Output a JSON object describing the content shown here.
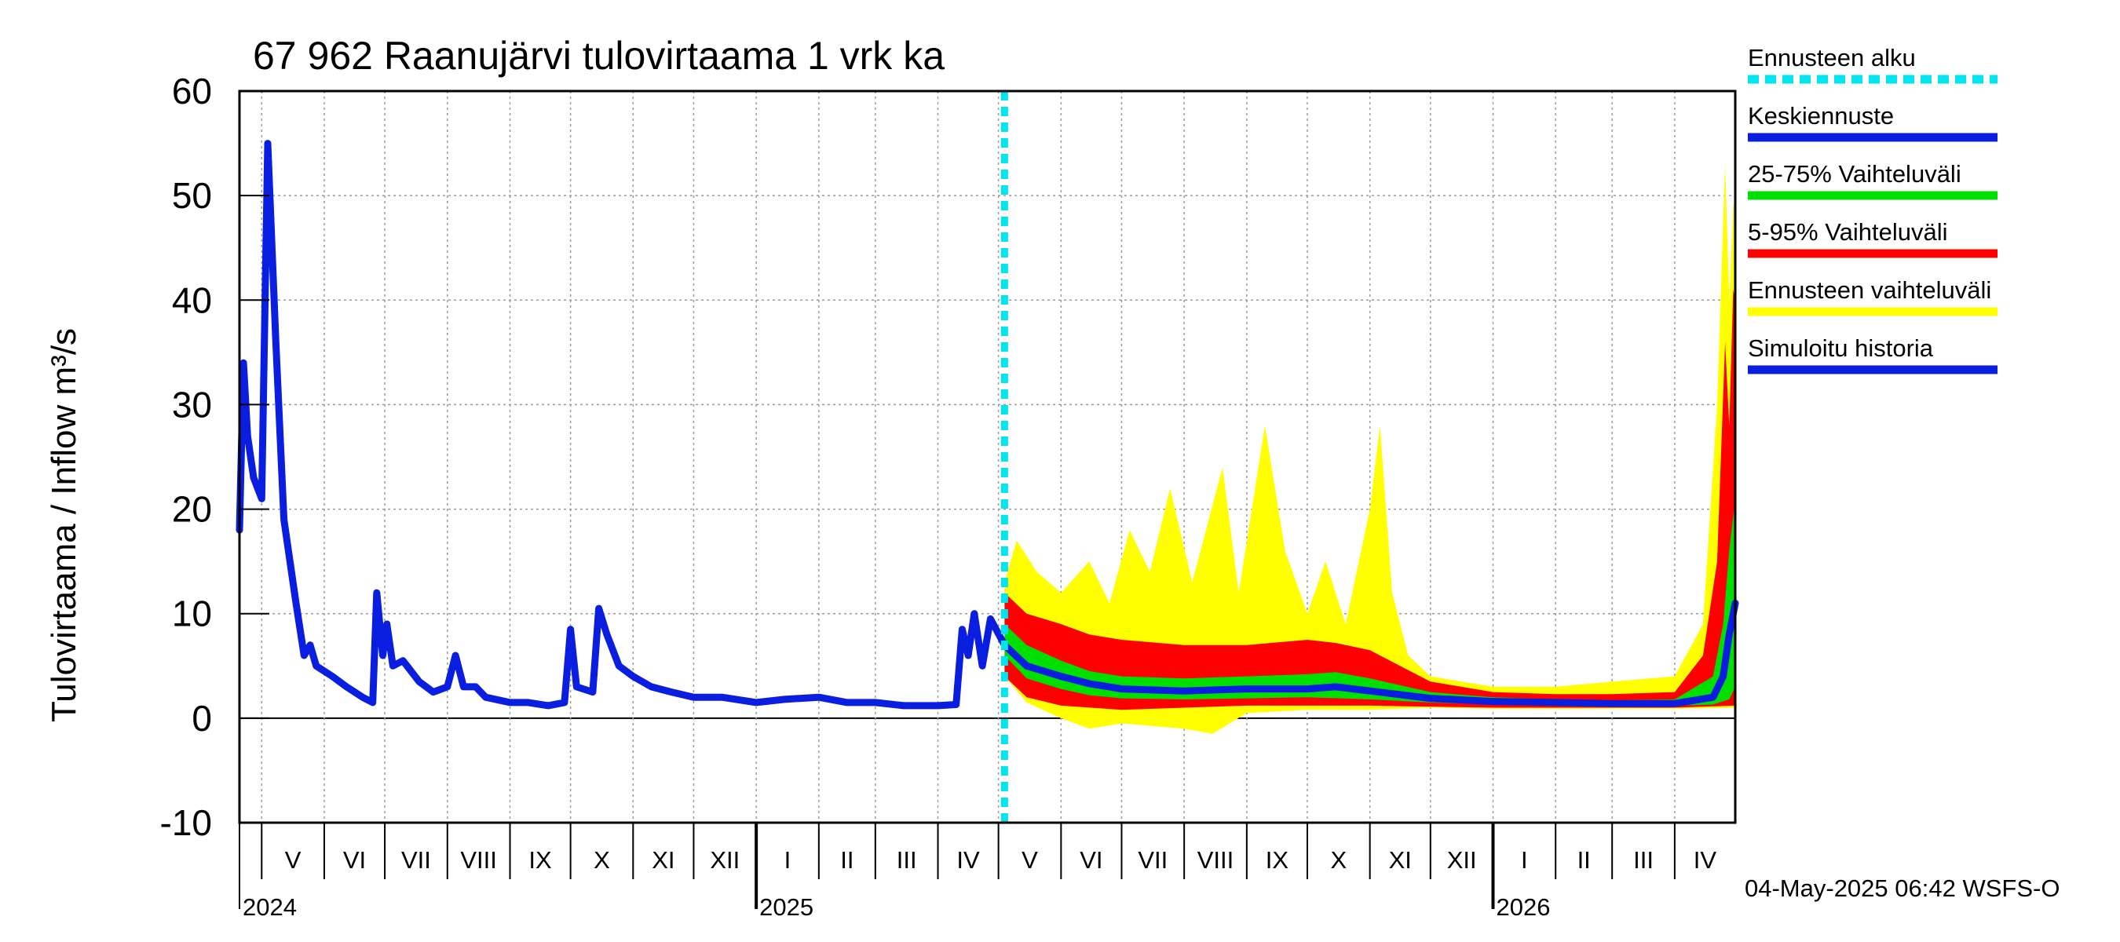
{
  "chart_data": {
    "type": "area",
    "title": "67 962 Raanujärvi tulovirtaama 1 vrk ka",
    "ylabel": "Tulovirtaama / Inflow    m³/s",
    "ylim": [
      -10,
      60
    ],
    "yticks": [
      -10,
      0,
      10,
      20,
      30,
      40,
      50,
      60
    ],
    "x_start": "2024-04-20",
    "x_end": "2026-05-01",
    "forecast_start": "2025-05-04",
    "grid": true,
    "months": [
      {
        "label": "V",
        "start": "2024-05-01",
        "end": "2024-06-01"
      },
      {
        "label": "VI",
        "start": "2024-06-01",
        "end": "2024-07-01"
      },
      {
        "label": "VII",
        "start": "2024-07-01",
        "end": "2024-08-01"
      },
      {
        "label": "VIII",
        "start": "2024-08-01",
        "end": "2024-09-01"
      },
      {
        "label": "IX",
        "start": "2024-09-01",
        "end": "2024-10-01"
      },
      {
        "label": "X",
        "start": "2024-10-01",
        "end": "2024-11-01"
      },
      {
        "label": "XI",
        "start": "2024-11-01",
        "end": "2024-12-01"
      },
      {
        "label": "XII",
        "start": "2024-12-01",
        "end": "2025-01-01"
      },
      {
        "label": "I",
        "start": "2025-01-01",
        "end": "2025-02-01"
      },
      {
        "label": "II",
        "start": "2025-02-01",
        "end": "2025-03-01"
      },
      {
        "label": "III",
        "start": "2025-03-01",
        "end": "2025-04-01"
      },
      {
        "label": "IV",
        "start": "2025-04-01",
        "end": "2025-05-01"
      },
      {
        "label": "V",
        "start": "2025-05-01",
        "end": "2025-06-01"
      },
      {
        "label": "VI",
        "start": "2025-06-01",
        "end": "2025-07-01"
      },
      {
        "label": "VII",
        "start": "2025-07-01",
        "end": "2025-08-01"
      },
      {
        "label": "VIII",
        "start": "2025-08-01",
        "end": "2025-09-01"
      },
      {
        "label": "IX",
        "start": "2025-09-01",
        "end": "2025-10-01"
      },
      {
        "label": "X",
        "start": "2025-10-01",
        "end": "2025-11-01"
      },
      {
        "label": "XI",
        "start": "2025-11-01",
        "end": "2025-12-01"
      },
      {
        "label": "XII",
        "start": "2025-12-01",
        "end": "2026-01-01"
      },
      {
        "label": "I",
        "start": "2026-01-01",
        "end": "2026-02-01"
      },
      {
        "label": "II",
        "start": "2026-02-01",
        "end": "2026-03-01"
      },
      {
        "label": "III",
        "start": "2026-03-01",
        "end": "2026-04-01"
      },
      {
        "label": "IV",
        "start": "2026-04-01",
        "end": "2026-05-01"
      }
    ],
    "years": [
      {
        "label": "2024",
        "date": "2024-04-20"
      },
      {
        "label": "2025",
        "date": "2025-01-01"
      },
      {
        "label": "2026",
        "date": "2026-01-01"
      }
    ],
    "legend": [
      {
        "label": "Ennusteen alku",
        "color": "#00e5ee",
        "style": "dashed"
      },
      {
        "label": "Keskiennuste",
        "color": "#0a1ee0",
        "style": "solid"
      },
      {
        "label": "25-75% Vaihteluväli",
        "color": "#00e000",
        "style": "solid"
      },
      {
        "label": "5-95% Vaihteluväli",
        "color": "#ff0000",
        "style": "solid"
      },
      {
        "label": "Ennusteen vaihteluväli",
        "color": "#ffff00",
        "style": "solid"
      },
      {
        "label": "Simuloitu historia",
        "color": "#0a1ee0",
        "style": "solid"
      }
    ],
    "series": [
      {
        "name": "Simuloitu historia",
        "color": "#0a1ee0",
        "points": [
          [
            "2024-04-20",
            18
          ],
          [
            "2024-04-22",
            34
          ],
          [
            "2024-04-24",
            27
          ],
          [
            "2024-04-27",
            23
          ],
          [
            "2024-05-01",
            21
          ],
          [
            "2024-05-04",
            55
          ],
          [
            "2024-05-08",
            36
          ],
          [
            "2024-05-12",
            19
          ],
          [
            "2024-05-18",
            11
          ],
          [
            "2024-05-22",
            6
          ],
          [
            "2024-05-25",
            7
          ],
          [
            "2024-05-28",
            5
          ],
          [
            "2024-06-05",
            4
          ],
          [
            "2024-06-12",
            3
          ],
          [
            "2024-06-20",
            2
          ],
          [
            "2024-06-25",
            1.5
          ],
          [
            "2024-06-27",
            12
          ],
          [
            "2024-06-30",
            6
          ],
          [
            "2024-07-02",
            9
          ],
          [
            "2024-07-05",
            5
          ],
          [
            "2024-07-10",
            5.5
          ],
          [
            "2024-07-18",
            3.5
          ],
          [
            "2024-07-25",
            2.5
          ],
          [
            "2024-08-01",
            3
          ],
          [
            "2024-08-05",
            6
          ],
          [
            "2024-08-09",
            3
          ],
          [
            "2024-08-15",
            3
          ],
          [
            "2024-08-20",
            2
          ],
          [
            "2024-09-01",
            1.5
          ],
          [
            "2024-09-10",
            1.5
          ],
          [
            "2024-09-20",
            1.2
          ],
          [
            "2024-09-28",
            1.5
          ],
          [
            "2024-10-01",
            8.5
          ],
          [
            "2024-10-04",
            3
          ],
          [
            "2024-10-12",
            2.5
          ],
          [
            "2024-10-15",
            10.5
          ],
          [
            "2024-10-19",
            8
          ],
          [
            "2024-10-25",
            5
          ],
          [
            "2024-11-01",
            4
          ],
          [
            "2024-11-10",
            3
          ],
          [
            "2024-11-20",
            2.5
          ],
          [
            "2024-12-01",
            2
          ],
          [
            "2024-12-15",
            2
          ],
          [
            "2025-01-01",
            1.5
          ],
          [
            "2025-01-15",
            1.8
          ],
          [
            "2025-02-01",
            2
          ],
          [
            "2025-02-15",
            1.5
          ],
          [
            "2025-03-01",
            1.5
          ],
          [
            "2025-03-15",
            1.2
          ],
          [
            "2025-04-01",
            1.2
          ],
          [
            "2025-04-10",
            1.3
          ],
          [
            "2025-04-13",
            8.5
          ],
          [
            "2025-04-16",
            6
          ],
          [
            "2025-04-19",
            10
          ],
          [
            "2025-04-23",
            5
          ],
          [
            "2025-04-27",
            9.5
          ],
          [
            "2025-05-04",
            7
          ]
        ]
      },
      {
        "name": "Keskiennuste",
        "color": "#0a1ee0",
        "points": [
          [
            "2025-05-04",
            7
          ],
          [
            "2025-05-15",
            5
          ],
          [
            "2025-06-01",
            4
          ],
          [
            "2025-06-15",
            3.3
          ],
          [
            "2025-07-01",
            2.8
          ],
          [
            "2025-08-01",
            2.6
          ],
          [
            "2025-09-01",
            2.8
          ],
          [
            "2025-10-01",
            2.8
          ],
          [
            "2025-10-15",
            3
          ],
          [
            "2025-11-01",
            2.6
          ],
          [
            "2025-12-01",
            1.9
          ],
          [
            "2026-01-01",
            1.6
          ],
          [
            "2026-02-01",
            1.5
          ],
          [
            "2026-03-01",
            1.4
          ],
          [
            "2026-04-01",
            1.4
          ],
          [
            "2026-04-20",
            2
          ],
          [
            "2026-04-25",
            4
          ],
          [
            "2026-04-28",
            8
          ],
          [
            "2026-05-01",
            11
          ]
        ]
      },
      {
        "name": "25-75% Vaihteluväli",
        "color": "#00e000",
        "upper": [
          [
            "2025-05-04",
            9
          ],
          [
            "2025-05-15",
            7
          ],
          [
            "2025-06-01",
            5.5
          ],
          [
            "2025-06-15",
            4.5
          ],
          [
            "2025-07-01",
            4
          ],
          [
            "2025-08-01",
            3.8
          ],
          [
            "2025-09-01",
            4
          ],
          [
            "2025-10-01",
            4.2
          ],
          [
            "2025-10-15",
            4.4
          ],
          [
            "2025-11-01",
            3.8
          ],
          [
            "2025-12-01",
            2.5
          ],
          [
            "2026-01-01",
            2
          ],
          [
            "2026-02-01",
            1.8
          ],
          [
            "2026-03-01",
            1.7
          ],
          [
            "2026-04-01",
            1.8
          ],
          [
            "2026-04-20",
            4
          ],
          [
            "2026-04-25",
            9
          ],
          [
            "2026-04-28",
            16
          ],
          [
            "2026-05-01",
            21
          ]
        ],
        "lower": [
          [
            "2025-05-04",
            6
          ],
          [
            "2025-05-15",
            3.8
          ],
          [
            "2025-06-01",
            2.8
          ],
          [
            "2025-06-15",
            2.2
          ],
          [
            "2025-07-01",
            1.9
          ],
          [
            "2025-08-01",
            1.8
          ],
          [
            "2025-09-01",
            1.9
          ],
          [
            "2025-10-01",
            2
          ],
          [
            "2025-11-01",
            1.8
          ],
          [
            "2025-12-01",
            1.5
          ],
          [
            "2026-01-01",
            1.3
          ],
          [
            "2026-02-01",
            1.2
          ],
          [
            "2026-03-01",
            1.2
          ],
          [
            "2026-04-01",
            1.2
          ],
          [
            "2026-04-20",
            1.3
          ],
          [
            "2026-04-28",
            1.8
          ],
          [
            "2026-05-01",
            3
          ]
        ]
      },
      {
        "name": "5-95% Vaihteluväli",
        "color": "#ff0000",
        "upper": [
          [
            "2025-05-04",
            12
          ],
          [
            "2025-05-15",
            10
          ],
          [
            "2025-06-01",
            9
          ],
          [
            "2025-06-15",
            8
          ],
          [
            "2025-07-01",
            7.5
          ],
          [
            "2025-08-01",
            7
          ],
          [
            "2025-09-01",
            7
          ],
          [
            "2025-10-01",
            7.5
          ],
          [
            "2025-10-15",
            7.2
          ],
          [
            "2025-11-01",
            6.5
          ],
          [
            "2025-12-01",
            3.5
          ],
          [
            "2026-01-01",
            2.5
          ],
          [
            "2026-02-01",
            2.3
          ],
          [
            "2026-03-01",
            2.3
          ],
          [
            "2026-04-01",
            2.5
          ],
          [
            "2026-04-15",
            6
          ],
          [
            "2026-04-22",
            15
          ],
          [
            "2026-04-26",
            36
          ],
          [
            "2026-04-28",
            28
          ],
          [
            "2026-04-30",
            41
          ],
          [
            "2026-05-01",
            40
          ]
        ],
        "lower": [
          [
            "2025-05-04",
            4
          ],
          [
            "2025-05-15",
            2
          ],
          [
            "2025-06-01",
            1.2
          ],
          [
            "2025-07-01",
            0.8
          ],
          [
            "2025-08-01",
            1
          ],
          [
            "2025-09-01",
            1.2
          ],
          [
            "2025-10-01",
            1.2
          ],
          [
            "2025-11-01",
            1.2
          ],
          [
            "2025-12-01",
            1.1
          ],
          [
            "2026-01-01",
            1
          ],
          [
            "2026-02-01",
            1
          ],
          [
            "2026-03-01",
            1
          ],
          [
            "2026-04-01",
            1
          ],
          [
            "2026-05-01",
            1.2
          ]
        ]
      },
      {
        "name": "Ennusteen vaihteluväli",
        "color": "#ffff00",
        "upper": [
          [
            "2025-05-04",
            13
          ],
          [
            "2025-05-10",
            17
          ],
          [
            "2025-05-20",
            14
          ],
          [
            "2025-06-01",
            12
          ],
          [
            "2025-06-15",
            15
          ],
          [
            "2025-06-25",
            11
          ],
          [
            "2025-07-05",
            18
          ],
          [
            "2025-07-15",
            14
          ],
          [
            "2025-07-25",
            22
          ],
          [
            "2025-08-05",
            13
          ],
          [
            "2025-08-20",
            24
          ],
          [
            "2025-08-28",
            12
          ],
          [
            "2025-09-10",
            28
          ],
          [
            "2025-09-20",
            16
          ],
          [
            "2025-10-01",
            10
          ],
          [
            "2025-10-10",
            15
          ],
          [
            "2025-10-20",
            9
          ],
          [
            "2025-11-01",
            20
          ],
          [
            "2025-11-06",
            28
          ],
          [
            "2025-11-12",
            12
          ],
          [
            "2025-11-20",
            6
          ],
          [
            "2025-12-01",
            4
          ],
          [
            "2026-01-01",
            3
          ],
          [
            "2026-02-01",
            3
          ],
          [
            "2026-03-01",
            3.5
          ],
          [
            "2026-04-01",
            4
          ],
          [
            "2026-04-15",
            9
          ],
          [
            "2026-04-22",
            30
          ],
          [
            "2026-04-26",
            53
          ],
          [
            "2026-04-28",
            40
          ],
          [
            "2026-04-30",
            49
          ],
          [
            "2026-05-01",
            50
          ]
        ],
        "lower": [
          [
            "2025-05-04",
            4
          ],
          [
            "2025-05-15",
            1.5
          ],
          [
            "2025-06-01",
            0
          ],
          [
            "2025-06-15",
            -1
          ],
          [
            "2025-07-01",
            -0.5
          ],
          [
            "2025-08-01",
            -1
          ],
          [
            "2025-08-15",
            -1.5
          ],
          [
            "2025-09-01",
            0.5
          ],
          [
            "2025-10-01",
            0.8
          ],
          [
            "2025-11-01",
            0.8
          ],
          [
            "2025-12-01",
            1
          ],
          [
            "2026-01-01",
            0.9
          ],
          [
            "2026-02-01",
            0.9
          ],
          [
            "2026-03-01",
            0.9
          ],
          [
            "2026-04-01",
            0.9
          ],
          [
            "2026-05-01",
            1
          ]
        ]
      }
    ]
  },
  "footer": {
    "timestamp": "04-May-2025 06:42 WSFS-O"
  }
}
